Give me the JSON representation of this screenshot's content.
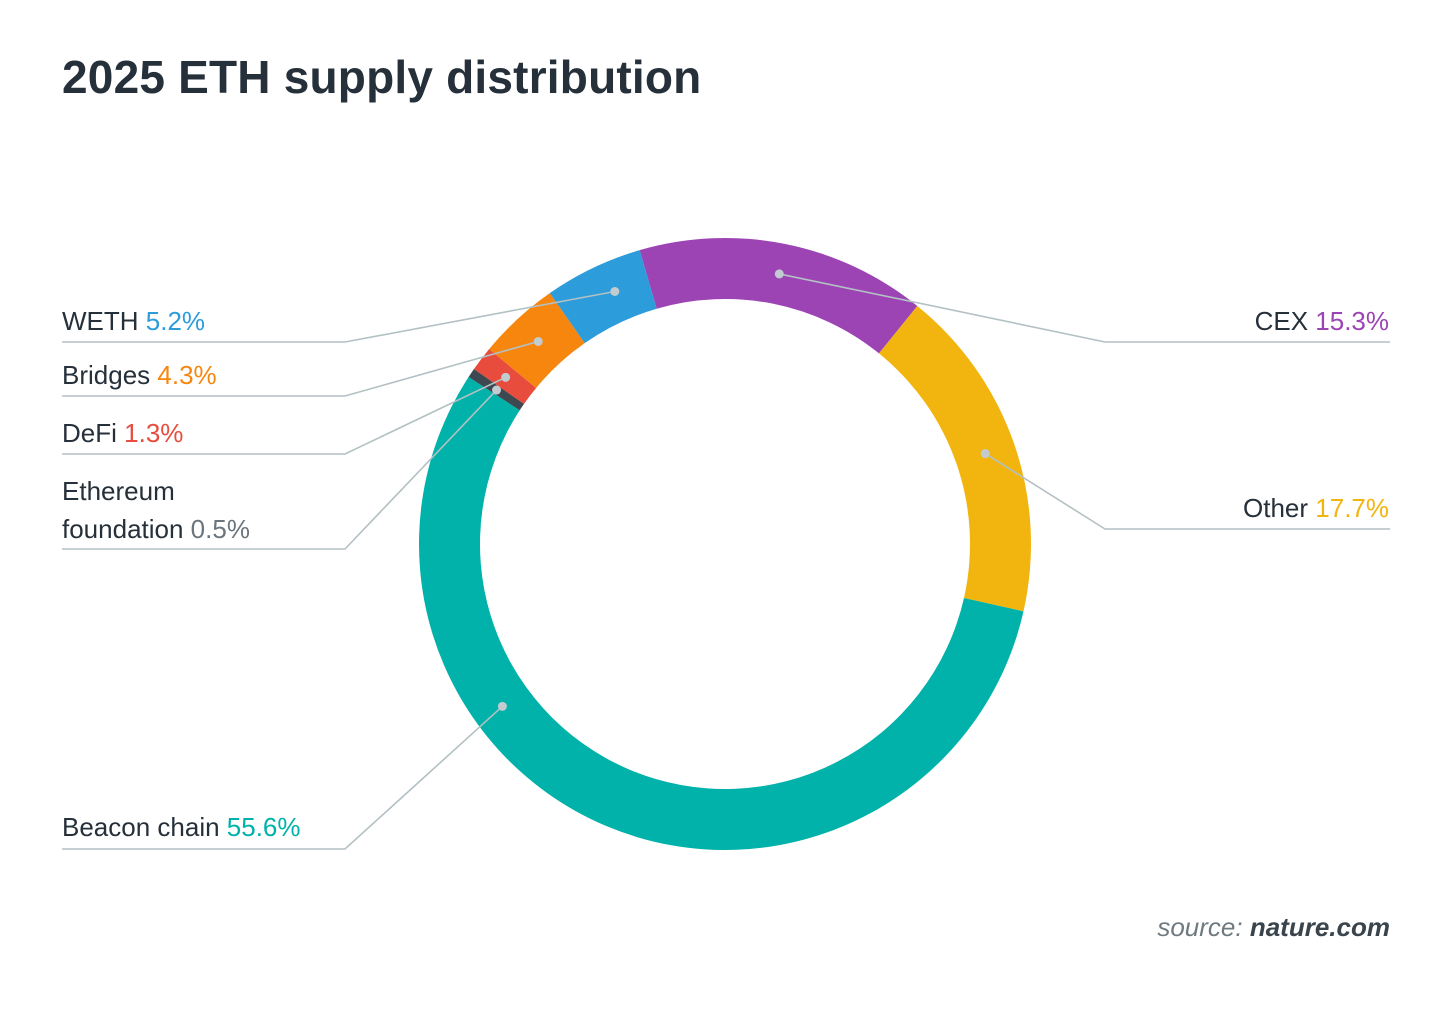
{
  "chart_data": {
    "type": "pie",
    "variant": "donut",
    "title": "2025 ETH supply distribution",
    "unit": "%",
    "slices": [
      {
        "label": "CEX",
        "value": 15.3,
        "value_label": "15.3%",
        "color": "#9d44b5"
      },
      {
        "label": "Other",
        "value": 17.7,
        "value_label": "17.7%",
        "color": "#f2b50f"
      },
      {
        "label": "Beacon chain",
        "value": 55.6,
        "value_label": "55.6%",
        "color": "#00b2a9"
      },
      {
        "label": "Ethereum foundation",
        "label_lines": [
          "Ethereum",
          "foundation"
        ],
        "value": 0.5,
        "value_label": "0.5%",
        "color": "#3d4850",
        "value_color": "#6c757c"
      },
      {
        "label": "DeFi",
        "value": 1.3,
        "value_label": "1.3%",
        "color": "#e84c3d"
      },
      {
        "label": "Bridges",
        "value": 4.3,
        "value_label": "4.3%",
        "color": "#f7860f"
      },
      {
        "label": "WETH",
        "value": 5.2,
        "value_label": "5.2%",
        "color": "#2d9cdb"
      }
    ],
    "legend_placement": "leader-line labels on both sides",
    "grid": false
  },
  "source": {
    "prefix": "source:",
    "name": "nature.com"
  }
}
